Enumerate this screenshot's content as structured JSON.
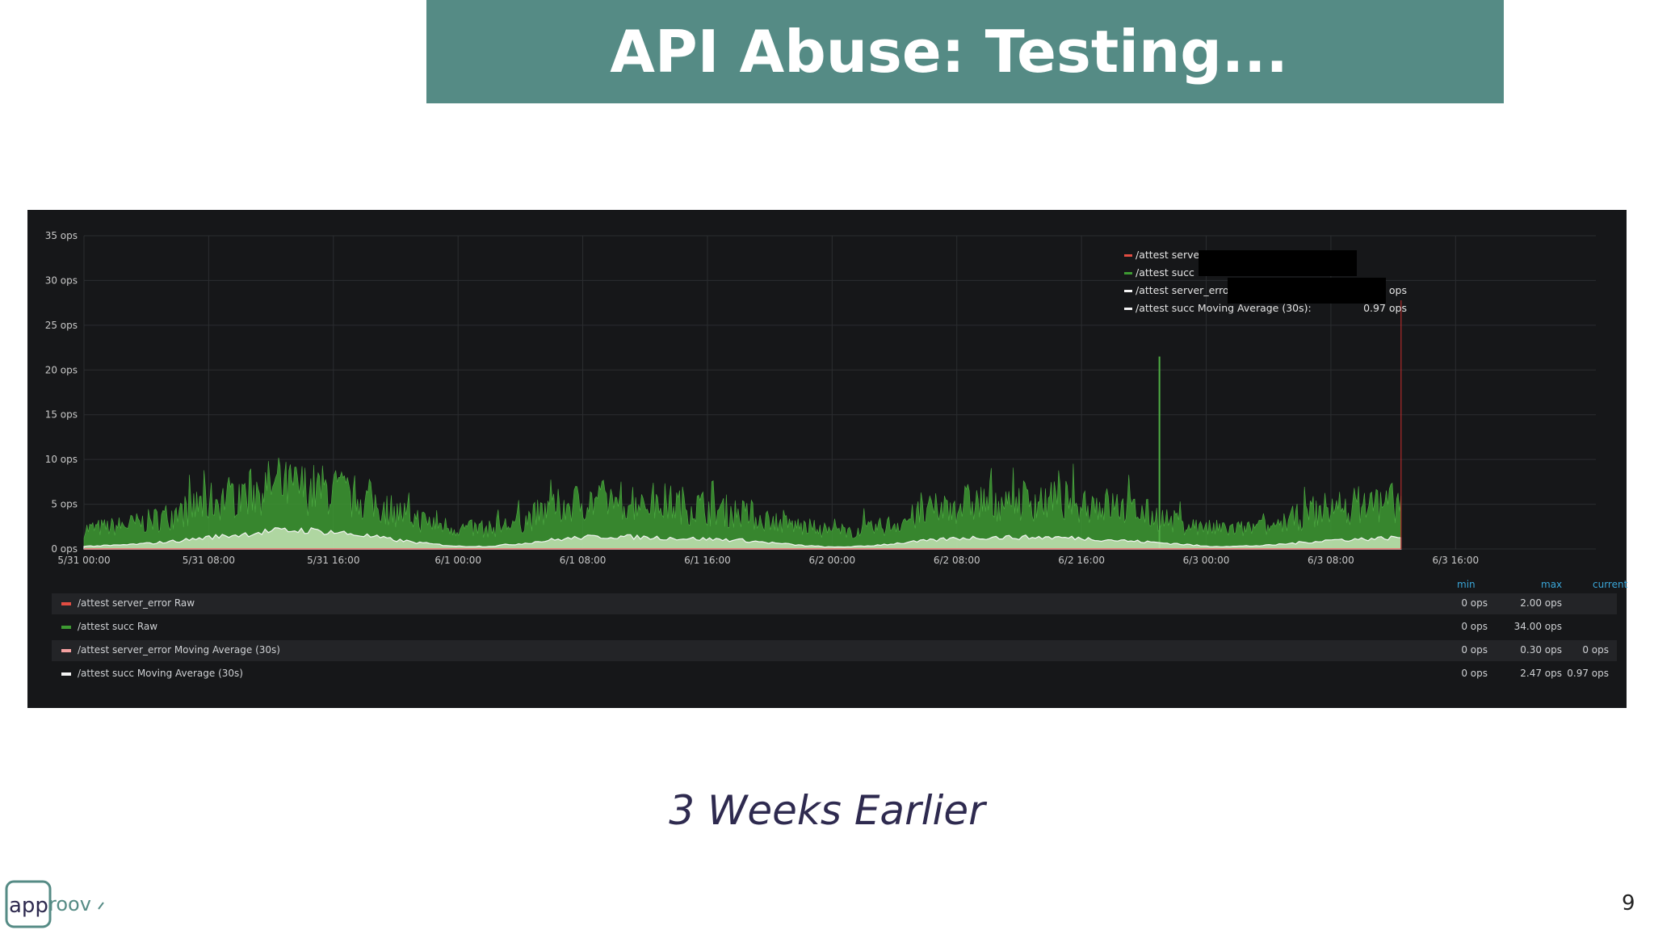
{
  "slide": {
    "title": "API Abuse: Testing...",
    "caption": "3 Weeks Earlier",
    "page_number": "9",
    "logo_text": "approov",
    "title_bar_color": "#558b85"
  },
  "chart_data": {
    "type": "area",
    "ylim": [
      0,
      35
    ],
    "yticks": [
      "0 ops",
      "5 ops",
      "10 ops",
      "15 ops",
      "20 ops",
      "25 ops",
      "30 ops",
      "35 ops"
    ],
    "xticks": [
      "5/31 00:00",
      "5/31 08:00",
      "5/31 16:00",
      "6/1 00:00",
      "6/1 08:00",
      "6/1 16:00",
      "6/2 00:00",
      "6/2 08:00",
      "6/2 16:00",
      "6/3 00:00",
      "6/3 08:00",
      "6/3 16:00"
    ],
    "x_hours": [
      0,
      8,
      16,
      24,
      32,
      40,
      48,
      56,
      64,
      72,
      80,
      88
    ],
    "x_end_hours": 97,
    "data_end_hours": 84.5,
    "grid": true,
    "legend_position": "bottom",
    "series": [
      {
        "name": "/attest server_error Raw",
        "color": "#e24d42",
        "hours": [
          0,
          84.5
        ],
        "values": [
          0,
          0
        ]
      },
      {
        "name": "/attest succ Raw",
        "color": "#3d9a32",
        "hours": [
          0,
          2,
          4,
          6,
          8,
          10,
          12,
          14,
          16,
          18,
          20,
          22,
          24,
          26,
          28,
          30,
          32,
          34,
          36,
          38,
          40,
          42,
          44,
          46,
          48,
          50,
          52,
          54,
          56,
          58,
          60,
          62,
          64,
          66,
          68,
          70,
          72,
          74,
          76,
          78,
          80,
          82,
          84.5
        ],
        "values": [
          2.2,
          2.5,
          3.0,
          4.0,
          5.2,
          6.2,
          7.0,
          6.8,
          6.5,
          5.5,
          4.2,
          3.0,
          2.3,
          2.2,
          3.0,
          4.5,
          5.3,
          5.5,
          5.4,
          5.0,
          4.6,
          4.0,
          3.2,
          2.5,
          2.0,
          2.0,
          2.8,
          4.0,
          5.0,
          5.3,
          5.5,
          5.4,
          5.2,
          4.8,
          4.0,
          3.0,
          2.3,
          2.2,
          2.4,
          3.6,
          4.6,
          5.0,
          5.2
        ]
      },
      {
        "name": "/attest server_error Moving Average (30s)",
        "color": "#f4a0a0",
        "hours": [
          0,
          84.5
        ],
        "values": [
          0,
          0
        ]
      },
      {
        "name": "/attest succ Moving Average (30s)",
        "color": "#f4f4f4",
        "hours": [
          0,
          2,
          4,
          6,
          8,
          10,
          12,
          14,
          16,
          18,
          20,
          22,
          24,
          26,
          28,
          30,
          32,
          34,
          36,
          38,
          40,
          42,
          44,
          46,
          48,
          50,
          52,
          54,
          56,
          58,
          60,
          62,
          64,
          66,
          68,
          70,
          72,
          74,
          76,
          78,
          80,
          82,
          84.5
        ],
        "values": [
          0.3,
          0.4,
          0.6,
          0.9,
          1.3,
          1.6,
          2.0,
          2.1,
          1.9,
          1.5,
          1.0,
          0.6,
          0.3,
          0.3,
          0.6,
          1.0,
          1.3,
          1.4,
          1.3,
          1.2,
          1.1,
          1.0,
          0.7,
          0.4,
          0.2,
          0.3,
          0.6,
          0.9,
          1.2,
          1.3,
          1.3,
          1.3,
          1.2,
          1.0,
          0.8,
          0.6,
          0.3,
          0.3,
          0.4,
          0.7,
          1.0,
          1.1,
          1.3
        ]
      }
    ],
    "spike": {
      "hour": 69,
      "value": 21.5
    },
    "tooltip": {
      "rows": [
        {
          "name": "/attest server_er",
          "value": "",
          "color": "#e24d42"
        },
        {
          "name": "/attest succ Raw",
          "value": "",
          "color": "#3d9a32"
        },
        {
          "name": "/attest server_error Moving Average (30s):",
          "value": "0 ops",
          "color": "#f4f4f4"
        },
        {
          "name": "/attest succ Moving Average (30s):",
          "value": "0.97 ops",
          "color": "#f4f4f4"
        }
      ]
    },
    "legend_table": {
      "columns": [
        "min",
        "max",
        "current"
      ],
      "rows": [
        {
          "name": "/attest server_error Raw",
          "color": "#e24d42",
          "min": "0 ops",
          "max": "2.00 ops",
          "current": ""
        },
        {
          "name": "/attest succ Raw",
          "color": "#3d9a32",
          "min": "0 ops",
          "max": "34.00 ops",
          "current": ""
        },
        {
          "name": "/attest server_error Moving Average (30s)",
          "color": "#f4a0a0",
          "min": "0 ops",
          "max": "0.30 ops",
          "current": "0 ops"
        },
        {
          "name": "/attest succ Moving Average (30s)",
          "color": "#f4f4f4",
          "min": "0 ops",
          "max": "2.47 ops",
          "current": "0.97 ops"
        }
      ]
    }
  }
}
